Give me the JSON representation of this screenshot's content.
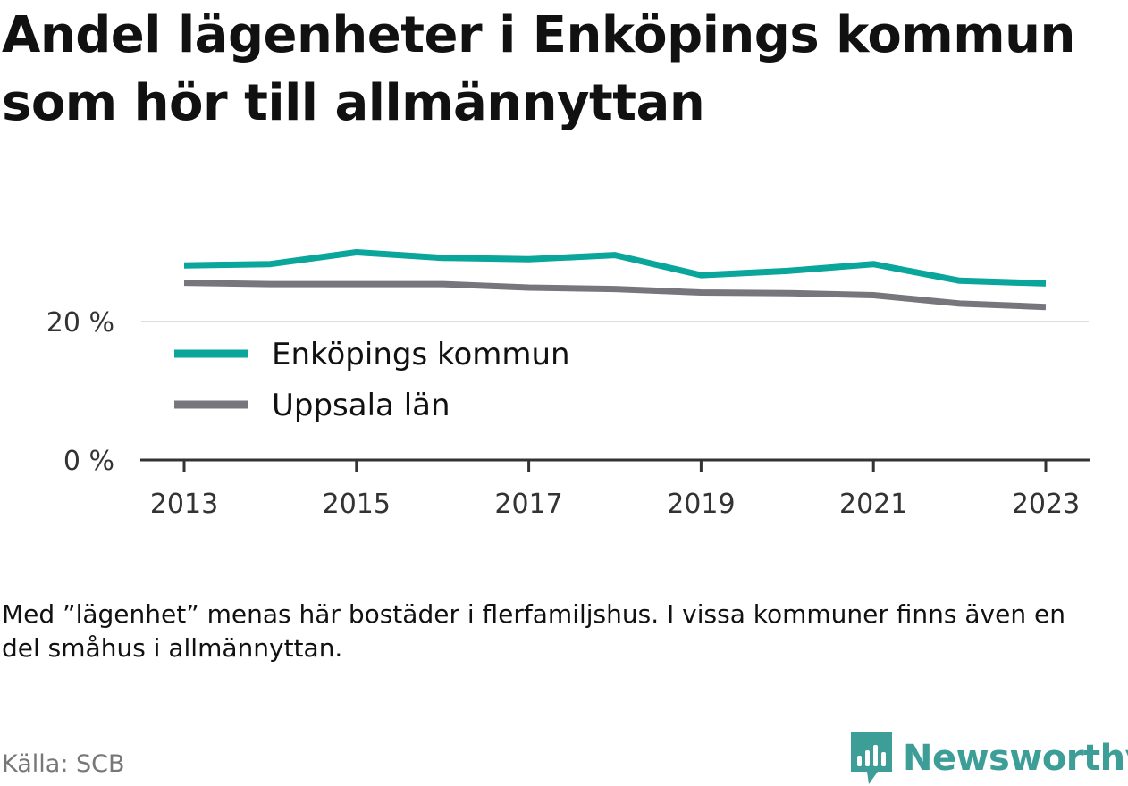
{
  "title": "Andel lägenheter i Enköpings kommun som hör till allmännyttan",
  "note": "Med ”lägenhet” menas här bostäder i flerfamiljshus. I vissa kommuner finns även en del småhus i allmännyttan.",
  "source": "Källa: SCB",
  "brand": {
    "name": "Newsworthy",
    "color": "#3d9e97",
    "icon": "newsworthy-logo-icon"
  },
  "colors": {
    "teal": "#0aa59b",
    "gray": "#77767c",
    "axis": "#333333",
    "grid": "#dddddd",
    "tick_text": "#333333"
  },
  "chart_data": {
    "type": "line",
    "x": [
      2013,
      2014,
      2015,
      2016,
      2017,
      2018,
      2019,
      2020,
      2021,
      2022,
      2023
    ],
    "x_tick_labels": [
      "2013",
      "2015",
      "2017",
      "2019",
      "2021",
      "2023"
    ],
    "y_tick_labels": [
      "0 %",
      "20 %"
    ],
    "ylim": [
      0,
      40
    ],
    "grid": true,
    "legend_position": "inside-left",
    "series": [
      {
        "name": "Enköpings kommun",
        "color": "#0aa59b",
        "values": [
          28.1,
          28.3,
          30.0,
          29.2,
          29.0,
          29.6,
          26.7,
          27.3,
          28.3,
          25.9,
          25.5
        ]
      },
      {
        "name": "Uppsala län",
        "color": "#77767c",
        "values": [
          25.6,
          25.4,
          25.4,
          25.4,
          24.9,
          24.7,
          24.2,
          24.1,
          23.8,
          22.6,
          22.1
        ]
      }
    ]
  }
}
